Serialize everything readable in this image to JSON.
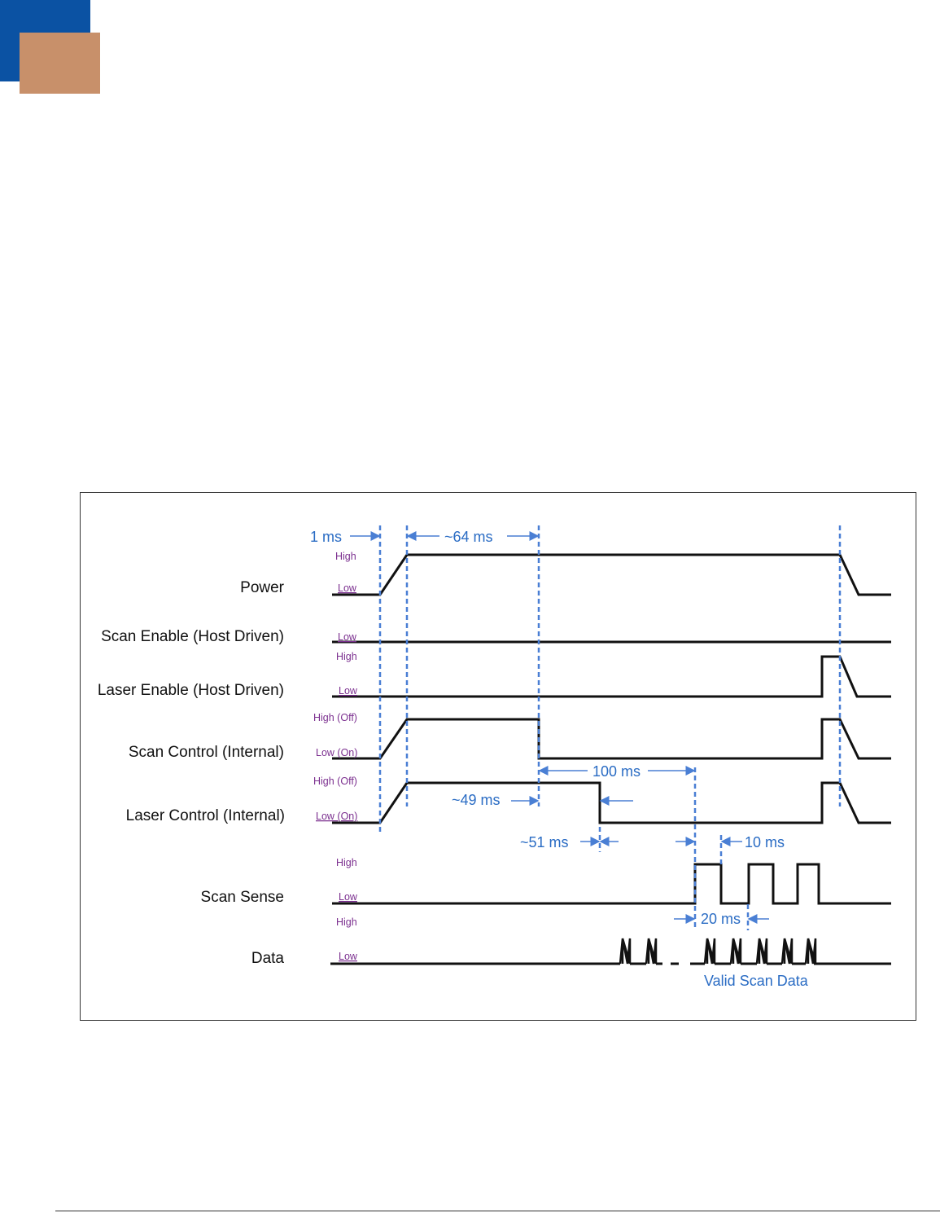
{
  "header": {
    "brand_colors": {
      "primary": "#0b52a3",
      "secondary": "#c8906a"
    }
  },
  "diagram": {
    "signals": [
      {
        "name": "Power",
        "levels": [
          "High",
          "Low"
        ]
      },
      {
        "name": "Scan Enable (Host Driven)",
        "levels": [
          "Low"
        ]
      },
      {
        "name": "Laser Enable (Host Driven)",
        "levels": [
          "High",
          "Low"
        ]
      },
      {
        "name": "Scan Control (Internal)",
        "levels": [
          "High (Off)",
          "Low (On)"
        ]
      },
      {
        "name": "Laser Control (Internal)",
        "levels": [
          "High (Off)",
          "Low (On)"
        ]
      },
      {
        "name": "Scan Sense",
        "levels": [
          "High",
          "Low"
        ]
      },
      {
        "name": "Data",
        "levels": [
          "High",
          "Low"
        ]
      }
    ],
    "annotations": {
      "t1": "1 ms",
      "t64": "~64 ms",
      "t100": "100 ms",
      "t49": "~49 ms",
      "t51": "~51 ms",
      "t10": "10 ms",
      "t20": "20 ms",
      "valid": "Valid Scan Data"
    },
    "colors": {
      "waveform": "#111111",
      "timing": "#4a7fd4",
      "level_label": "#7b2f8f"
    }
  }
}
